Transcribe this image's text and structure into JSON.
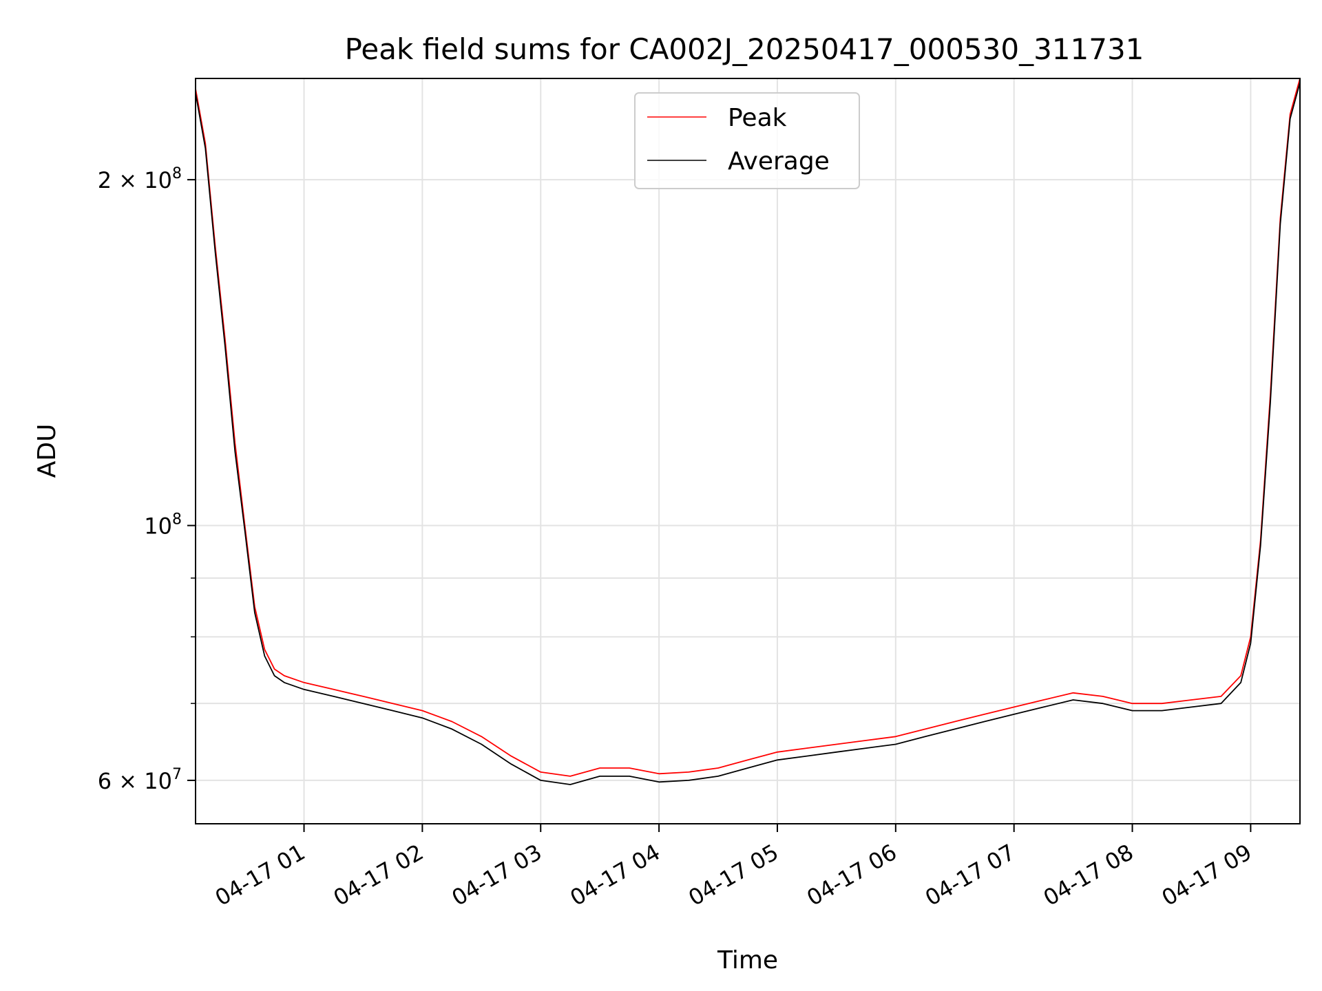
{
  "chart_data": {
    "type": "line",
    "title": "Peak field sums for CA002J_20250417_000530_311731",
    "xlabel": "Time",
    "ylabel": "ADU",
    "yscale": "log",
    "grid": true,
    "legend_position": "top-center",
    "xlim": [
      "2025-04-17 00:05",
      "2025-04-17 09:25"
    ],
    "ylim": [
      55000000,
      245000000
    ],
    "x_ticks": [
      {
        "value": "2025-04-17 01:00",
        "label": "04-17 01"
      },
      {
        "value": "2025-04-17 02:00",
        "label": "04-17 02"
      },
      {
        "value": "2025-04-17 03:00",
        "label": "04-17 03"
      },
      {
        "value": "2025-04-17 04:00",
        "label": "04-17 04"
      },
      {
        "value": "2025-04-17 05:00",
        "label": "04-17 05"
      },
      {
        "value": "2025-04-17 06:00",
        "label": "04-17 06"
      },
      {
        "value": "2025-04-17 07:00",
        "label": "04-17 07"
      },
      {
        "value": "2025-04-17 08:00",
        "label": "04-17 08"
      },
      {
        "value": "2025-04-17 09:00",
        "label": "04-17 09"
      }
    ],
    "y_major_ticks": [
      {
        "value": 60000000,
        "mantissa": "6 × 10",
        "exp": "7"
      },
      {
        "value": 100000000,
        "mantissa": "10",
        "exp": "8"
      },
      {
        "value": 200000000,
        "mantissa": "2 × 10",
        "exp": "8"
      }
    ],
    "y_minor_ticks": [
      70000000,
      80000000,
      90000000
    ],
    "x": [
      "2025-04-17 00:05",
      "2025-04-17 00:10",
      "2025-04-17 00:15",
      "2025-04-17 00:20",
      "2025-04-17 00:25",
      "2025-04-17 00:30",
      "2025-04-17 00:35",
      "2025-04-17 00:40",
      "2025-04-17 00:45",
      "2025-04-17 00:50",
      "2025-04-17 01:00",
      "2025-04-17 01:15",
      "2025-04-17 01:30",
      "2025-04-17 01:45",
      "2025-04-17 02:00",
      "2025-04-17 02:15",
      "2025-04-17 02:30",
      "2025-04-17 02:45",
      "2025-04-17 03:00",
      "2025-04-17 03:15",
      "2025-04-17 03:30",
      "2025-04-17 03:45",
      "2025-04-17 04:00",
      "2025-04-17 04:15",
      "2025-04-17 04:30",
      "2025-04-17 04:45",
      "2025-04-17 05:00",
      "2025-04-17 05:15",
      "2025-04-17 05:30",
      "2025-04-17 05:45",
      "2025-04-17 06:00",
      "2025-04-17 06:15",
      "2025-04-17 06:30",
      "2025-04-17 06:45",
      "2025-04-17 07:00",
      "2025-04-17 07:15",
      "2025-04-17 07:30",
      "2025-04-17 07:45",
      "2025-04-17 08:00",
      "2025-04-17 08:15",
      "2025-04-17 08:30",
      "2025-04-17 08:45",
      "2025-04-17 08:55",
      "2025-04-17 09:00",
      "2025-04-17 09:05",
      "2025-04-17 09:10",
      "2025-04-17 09:15",
      "2025-04-17 09:20",
      "2025-04-17 09:25"
    ],
    "series": [
      {
        "name": "Peak",
        "color": "#ff0000",
        "values": [
          240000000,
          215000000,
          175000000,
          145000000,
          118000000,
          100000000,
          85000000,
          78000000,
          75000000,
          74000000,
          73000000,
          72000000,
          71000000,
          70000000,
          69000000,
          67500000,
          65500000,
          63000000,
          61000000,
          60500000,
          61500000,
          61500000,
          60800000,
          61000000,
          61500000,
          62500000,
          63500000,
          64000000,
          64500000,
          65000000,
          65500000,
          66500000,
          67500000,
          68500000,
          69500000,
          70500000,
          71500000,
          71000000,
          70000000,
          70000000,
          70500000,
          71000000,
          74000000,
          80000000,
          97000000,
          130000000,
          185000000,
          228000000,
          245000000
        ]
      },
      {
        "name": "Average",
        "color": "#000000",
        "values": [
          238000000,
          213000000,
          173000000,
          143000000,
          116000000,
          99000000,
          84000000,
          77000000,
          74000000,
          73000000,
          72000000,
          71000000,
          70000000,
          69000000,
          68000000,
          66500000,
          64500000,
          62000000,
          60000000,
          59500000,
          60500000,
          60500000,
          59800000,
          60000000,
          60500000,
          61500000,
          62500000,
          63000000,
          63500000,
          64000000,
          64500000,
          65500000,
          66500000,
          67500000,
          68500000,
          69500000,
          70500000,
          70000000,
          69000000,
          69000000,
          69500000,
          70000000,
          73000000,
          79000000,
          96000000,
          128000000,
          183000000,
          226000000,
          243000000
        ]
      }
    ]
  }
}
